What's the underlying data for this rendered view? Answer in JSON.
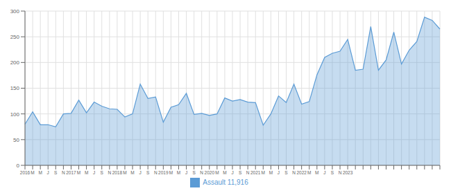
{
  "chart_data": {
    "type": "area",
    "categories": [
      "2016",
      "M",
      "M",
      "J",
      "S",
      "N",
      "2017",
      "M",
      "M",
      "J",
      "S",
      "N",
      "2018",
      "M",
      "M",
      "J",
      "S",
      "N",
      "2019",
      "M",
      "M",
      "J",
      "S",
      "N",
      "2020",
      "M",
      "M",
      "J",
      "S",
      "N",
      "2021",
      "M",
      "M",
      "J",
      "S",
      "N",
      "2022",
      "M",
      "M",
      "J",
      "S",
      "N",
      "2023",
      null,
      null,
      null,
      null,
      null,
      null,
      null,
      null,
      null,
      null,
      null,
      null
    ],
    "series": [
      {
        "name": "Assault   11,916",
        "color": "#5b9bd5",
        "values": [
          80,
          104,
          79,
          79,
          75,
          100,
          101,
          127,
          102,
          123,
          115,
          110,
          109,
          94,
          100,
          158,
          130,
          133,
          84,
          113,
          118,
          140,
          99,
          101,
          97,
          100,
          131,
          125,
          128,
          123,
          122,
          78,
          100,
          135,
          122,
          158,
          119,
          124,
          176,
          210,
          218,
          222,
          245,
          185,
          187,
          270,
          185,
          205,
          259,
          197,
          224,
          241,
          288,
          282,
          265
        ]
      }
    ],
    "ylim": [
      0,
      300
    ],
    "yticks": [
      0,
      50,
      100,
      150,
      200,
      250,
      300
    ],
    "grid": true,
    "legend": "bottom"
  }
}
